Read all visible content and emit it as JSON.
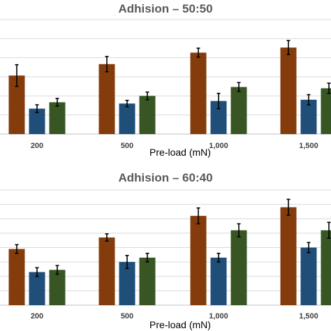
{
  "chart_data": [
    {
      "type": "bar",
      "title": "Adhision – 50:50",
      "xlabel": "Pre-load (mN)",
      "ylabel": "",
      "categories": [
        "200",
        "500",
        "1,000",
        "1,500"
      ],
      "ylim": [
        0,
        9
      ],
      "grid": true,
      "series": [
        {
          "color": "#843C0C",
          "values": [
            4.6,
            5.5,
            6.4,
            6.8
          ],
          "errors": [
            0.85,
            0.6,
            0.35,
            0.55
          ]
        },
        {
          "color": "#1F4E79",
          "values": [
            2.0,
            2.4,
            2.6,
            2.7
          ],
          "errors": [
            0.3,
            0.25,
            0.6,
            0.4
          ]
        },
        {
          "color": "#375623",
          "values": [
            2.5,
            3.0,
            3.7,
            3.6
          ],
          "errors": [
            0.3,
            0.3,
            0.35,
            0.4
          ]
        }
      ]
    },
    {
      "type": "bar",
      "title": "Adhision – 60:40",
      "xlabel": "Pre-load (mN)",
      "ylabel": "",
      "categories": [
        "200",
        "500",
        "1,000",
        "1,500"
      ],
      "ylim": [
        0,
        8
      ],
      "grid": true,
      "series": [
        {
          "color": "#843C0C",
          "values": [
            3.9,
            4.7,
            6.2,
            6.8
          ],
          "errors": [
            0.3,
            0.25,
            0.55,
            0.55
          ]
        },
        {
          "color": "#1F4E79",
          "values": [
            2.3,
            3.0,
            3.3,
            4.0
          ],
          "errors": [
            0.3,
            0.45,
            0.3,
            0.35
          ]
        },
        {
          "color": "#375623",
          "values": [
            2.45,
            3.3,
            5.2,
            5.2
          ],
          "errors": [
            0.3,
            0.3,
            0.45,
            0.55
          ]
        }
      ]
    }
  ]
}
